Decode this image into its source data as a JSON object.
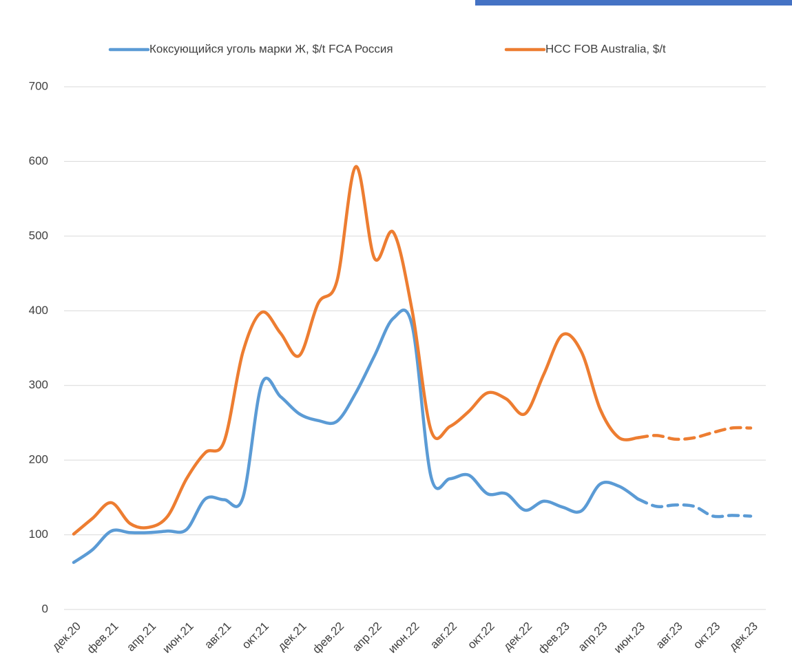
{
  "chart_data": {
    "type": "line",
    "categories": [
      "дек.20",
      null,
      "фев.21",
      null,
      "апр.21",
      null,
      "июн.21",
      null,
      "авг.21",
      null,
      "окт.21",
      null,
      "дек.21",
      null,
      "фев.22",
      null,
      "апр.22",
      null,
      "июн.22",
      null,
      "авг.22",
      null,
      "окт.22",
      null,
      "дек.22",
      null,
      "фев.23",
      null,
      "апр.23",
      null,
      "июн.23",
      null,
      "авг.23",
      null,
      "окт.23",
      null,
      "дек.23"
    ],
    "series": [
      {
        "name": "Коксующийся уголь марки Ж, $/t FCA Россия",
        "color": "#5b9bd5",
        "dashed_from": 30,
        "values": [
          63,
          80,
          105,
          103,
          103,
          105,
          107,
          148,
          147,
          150,
          302,
          285,
          262,
          253,
          252,
          290,
          340,
          390,
          380,
          178,
          175,
          180,
          155,
          155,
          133,
          145,
          137,
          132,
          168,
          165,
          148,
          138,
          140,
          138,
          125,
          126,
          125
        ]
      },
      {
        "name": "HCC FOB Australia, $/t",
        "color": "#ed7d31",
        "dashed_from": 30,
        "values": [
          101,
          122,
          143,
          115,
          110,
          125,
          175,
          210,
          225,
          345,
          398,
          370,
          340,
          410,
          440,
          593,
          470,
          505,
          400,
          240,
          245,
          265,
          290,
          282,
          262,
          315,
          368,
          345,
          268,
          230,
          230,
          233,
          228,
          230,
          237,
          243,
          243
        ]
      }
    ],
    "ylim": [
      0,
      700
    ],
    "yticks": [
      0,
      100,
      200,
      300,
      400,
      500,
      600,
      700
    ],
    "grid": true,
    "legend": "top"
  }
}
